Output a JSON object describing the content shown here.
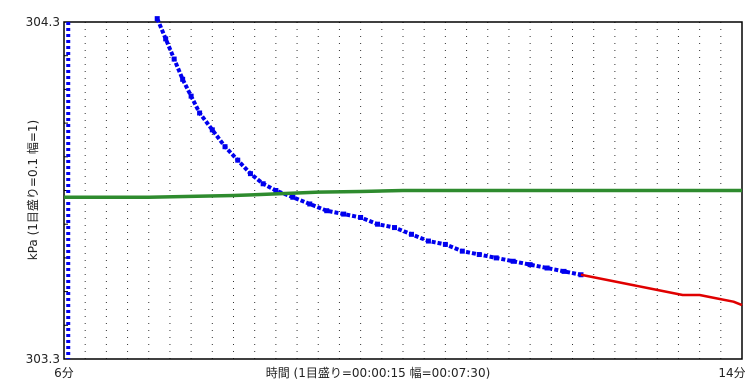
{
  "chart_data": {
    "type": "line",
    "title": "",
    "xlabel": "時間 (1目盛り=00:00:15 幅=00:07:30)",
    "ylabel": "kPa (1目盛り=0.1 幅=1)",
    "x_unit": "min",
    "xlim": [
      6,
      14
    ],
    "ylim": [
      303.3,
      304.3
    ],
    "x_tick_labels": [
      "6分",
      "14分"
    ],
    "y_tick_labels": [
      "304.3",
      "303.3"
    ],
    "grid": true,
    "legend": "none",
    "vertical_marker": {
      "x": 6.05,
      "color": "#0000ee",
      "style": "dotted"
    },
    "series": [
      {
        "color": "#0000ee",
        "style": "markers",
        "x": [
          7.1,
          7.2,
          7.3,
          7.4,
          7.5,
          7.6,
          7.75,
          7.9,
          8.05,
          8.2,
          8.35,
          8.5,
          8.7,
          8.9,
          9.1,
          9.3,
          9.5,
          9.7,
          9.9,
          10.1,
          10.3,
          10.5,
          10.7,
          10.9,
          11.1,
          11.3,
          11.5,
          11.7,
          11.9,
          12.1
        ],
        "y": [
          304.31,
          304.25,
          304.19,
          304.13,
          304.08,
          304.03,
          303.98,
          303.93,
          303.89,
          303.85,
          303.82,
          303.8,
          303.78,
          303.76,
          303.74,
          303.73,
          303.72,
          303.7,
          303.69,
          303.67,
          303.65,
          303.64,
          303.62,
          303.61,
          303.6,
          303.59,
          303.58,
          303.57,
          303.56,
          303.55
        ]
      },
      {
        "color": "#e00000",
        "style": "line",
        "x": [
          12.1,
          12.3,
          12.5,
          12.7,
          12.9,
          13.1,
          13.3,
          13.5,
          13.7,
          13.9,
          14.0
        ],
        "y": [
          303.55,
          303.54,
          303.53,
          303.52,
          303.51,
          303.5,
          303.49,
          303.49,
          303.48,
          303.47,
          303.46
        ]
      },
      {
        "color": "#2e8b2e",
        "style": "line",
        "x": [
          6.0,
          7.0,
          8.0,
          8.5,
          9.0,
          9.5,
          10.0,
          11.0,
          12.0,
          13.0,
          14.0
        ],
        "y": [
          303.78,
          303.78,
          303.785,
          303.79,
          303.795,
          303.797,
          303.8,
          303.8,
          303.8,
          303.8,
          303.8
        ]
      }
    ]
  }
}
